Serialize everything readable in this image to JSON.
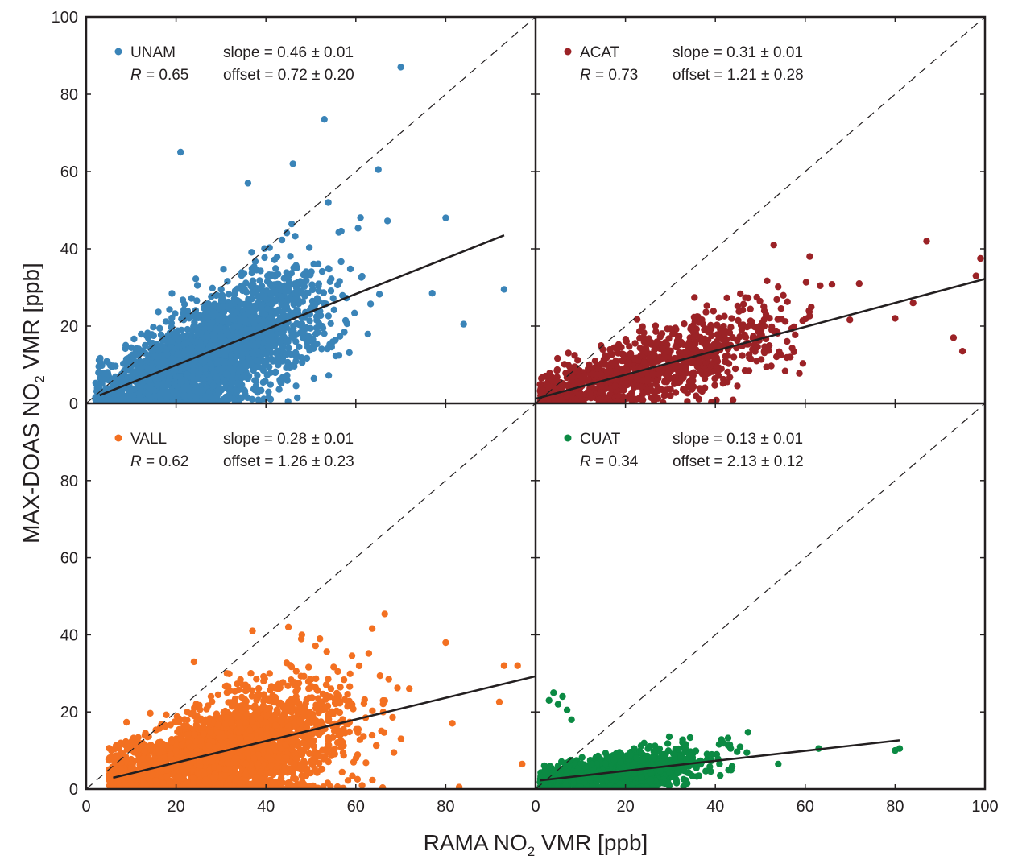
{
  "chart_data": {
    "type": "scatter",
    "xlabel": "RAMA NO",
    "xlabel_sub": "2",
    "xlabel_tail": " VMR [ppb]",
    "ylabel": "MAX-DOAS NO",
    "ylabel_sub": "2",
    "ylabel_tail": " VMR [ppb]",
    "xlim": [
      0,
      100
    ],
    "ylim": [
      0,
      100
    ],
    "x_ticks": [
      0,
      20,
      40,
      60,
      80,
      100
    ],
    "y_ticks": [
      0,
      20,
      40,
      60,
      80,
      100
    ],
    "panels": [
      {
        "station": "UNAM",
        "color": "#3a84b8",
        "R_label": "R",
        "R_text": " = 0.65",
        "slope_text": "slope = 0.46 ± 0.01",
        "offset_text": "offset = 0.72 ± 0.20",
        "slope": 0.46,
        "offset": 0.72,
        "fit_x": [
          3,
          93
        ],
        "n_points": 2600,
        "cloud": {
          "x_center": 28,
          "x_spread": 12,
          "x_min": 2,
          "x_max": 70,
          "noise": 6.5
        },
        "extra_points": [
          [
            21,
            65
          ],
          [
            53,
            73.5
          ],
          [
            70,
            87
          ],
          [
            46,
            62
          ],
          [
            65,
            60.5
          ],
          [
            36,
            57
          ],
          [
            80,
            48
          ],
          [
            93,
            29.5
          ],
          [
            84,
            20.5
          ],
          [
            77,
            28.5
          ]
        ]
      },
      {
        "station": "ACAT",
        "color": "#9b2226",
        "R_label": "R",
        "R_text": " = 0.73",
        "slope_text": "slope = 0.31 ± 0.01",
        "offset_text": "offset = 1.21 ± 0.28",
        "slope": 0.31,
        "offset": 1.21,
        "fit_x": [
          0,
          100
        ],
        "n_points": 1100,
        "cloud": {
          "x_center": 24,
          "x_spread": 16,
          "x_min": 1,
          "x_max": 100,
          "noise": 4.5
        },
        "extra_points": [
          [
            53,
            41
          ],
          [
            87,
            42
          ],
          [
            61,
            38
          ],
          [
            99,
            37.5
          ],
          [
            98,
            33
          ],
          [
            84,
            26
          ],
          [
            93,
            17
          ],
          [
            95,
            13.5
          ],
          [
            80,
            22
          ],
          [
            72,
            31
          ]
        ]
      },
      {
        "station": "VALL",
        "color": "#f37021",
        "R_label": "R",
        "R_text": " = 0.62",
        "slope_text": "slope = 0.28 ± 0.01",
        "offset_text": "offset = 1.26 ± 0.23",
        "slope": 0.28,
        "offset": 1.26,
        "fit_x": [
          6,
          100
        ],
        "n_points": 2600,
        "cloud": {
          "x_center": 30,
          "x_spread": 14,
          "x_min": 5,
          "x_max": 98,
          "noise": 6
        },
        "extra_points": [
          [
            45,
            42
          ],
          [
            37,
            41
          ],
          [
            48,
            40
          ],
          [
            52,
            39
          ],
          [
            80,
            38
          ],
          [
            93,
            32
          ],
          [
            96,
            32
          ],
          [
            97,
            6.5
          ],
          [
            83,
            0.5
          ],
          [
            24,
            33
          ]
        ]
      },
      {
        "station": "CUAT",
        "color": "#0b8a43",
        "R_label": "R",
        "R_text": " = 0.34",
        "slope_text": "slope = 0.13 ± 0.01",
        "offset_text": "offset = 2.13 ± 0.12",
        "slope": 0.13,
        "offset": 2.13,
        "fit_x": [
          1,
          81
        ],
        "n_points": 1100,
        "cloud": {
          "x_center": 18,
          "x_spread": 10,
          "x_min": 1,
          "x_max": 55,
          "noise": 2.6
        },
        "extra_points": [
          [
            4,
            25
          ],
          [
            6,
            24
          ],
          [
            5,
            22
          ],
          [
            7,
            20.5
          ],
          [
            3,
            23
          ],
          [
            8,
            18
          ],
          [
            63,
            10.5
          ],
          [
            80,
            10
          ],
          [
            81,
            10.5
          ],
          [
            54,
            6.5
          ]
        ]
      }
    ]
  }
}
